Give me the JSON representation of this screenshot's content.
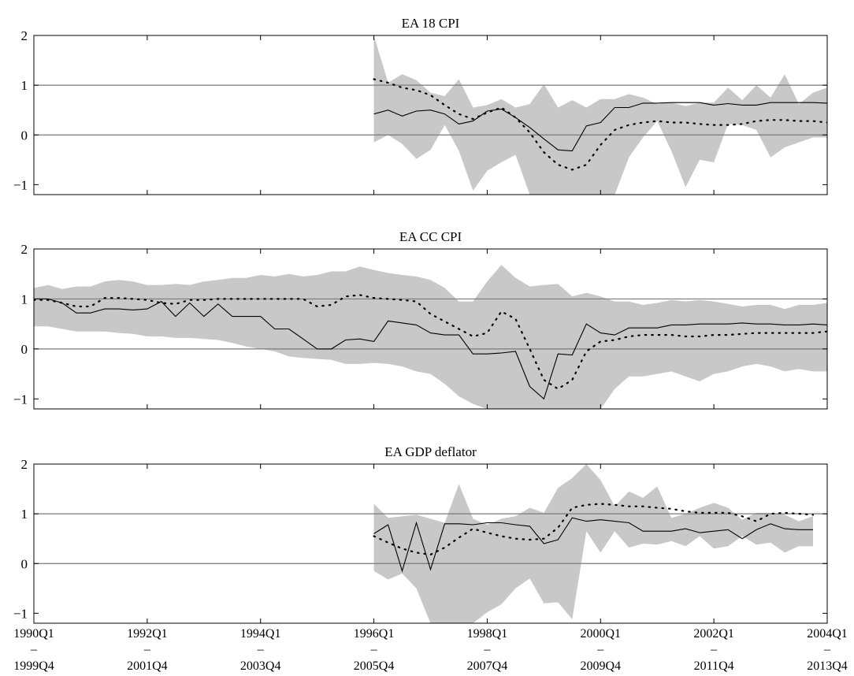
{
  "chart_data": {
    "type": "area",
    "x_ticks": [
      {
        "top": "1990Q1",
        "bottom": "1999Q4"
      },
      {
        "top": "1992Q1",
        "bottom": "2001Q4"
      },
      {
        "top": "1994Q1",
        "bottom": "2003Q4"
      },
      {
        "top": "1996Q1",
        "bottom": "2005Q4"
      },
      {
        "top": "1998Q1",
        "bottom": "2007Q4"
      },
      {
        "top": "2000Q1",
        "bottom": "2009Q4"
      },
      {
        "top": "2002Q1",
        "bottom": "2011Q4"
      },
      {
        "top": "2004Q1",
        "bottom": "2013Q4"
      }
    ],
    "x_tick_separator": "–",
    "xlim": [
      0,
      56
    ],
    "grid": "horizontal reference lines at 0 and 1",
    "panels": [
      {
        "title": "EA 18 CPI",
        "ylim": [
          -1.2,
          2
        ],
        "yticks": [
          2,
          1,
          0,
          -1
        ],
        "band": {
          "x": [
            24,
            25,
            26,
            27,
            28,
            29,
            30,
            31,
            32,
            33,
            34,
            35,
            36,
            37,
            38,
            39,
            40,
            41,
            42,
            43,
            44,
            45,
            46,
            47,
            48,
            49,
            50,
            51,
            52,
            53,
            54,
            55,
            56
          ],
          "upper": [
            2.0,
            1.05,
            1.22,
            1.1,
            0.85,
            0.78,
            1.12,
            0.55,
            0.6,
            0.72,
            0.55,
            0.62,
            1.02,
            0.55,
            0.7,
            0.55,
            0.72,
            0.72,
            0.82,
            0.75,
            0.62,
            0.65,
            0.58,
            0.65,
            0.65,
            0.95,
            0.7,
            1.0,
            0.75,
            1.22,
            0.62,
            0.85,
            0.95
          ],
          "lower": [
            -0.15,
            0.0,
            -0.18,
            -0.48,
            -0.3,
            0.2,
            -0.32,
            -1.12,
            -0.72,
            -0.55,
            -0.4,
            -1.2,
            -1.2,
            -1.2,
            -1.2,
            -1.2,
            -1.2,
            -1.2,
            -0.45,
            -0.05,
            0.28,
            -0.32,
            -1.05,
            -0.5,
            -0.55,
            0.22,
            0.2,
            0.1,
            -0.45,
            -0.25,
            -0.15,
            -0.05,
            -0.05
          ],
          "color": "#c8c8c8"
        },
        "series": [
          {
            "style": "solid",
            "x": [
              24,
              25,
              26,
              27,
              28,
              29,
              30,
              31,
              32,
              33,
              34,
              35,
              36,
              37,
              38,
              39,
              40,
              41,
              42,
              43,
              44,
              45,
              46,
              47,
              48,
              49,
              50,
              51,
              52,
              53,
              54,
              55,
              56
            ],
            "y": [
              0.42,
              0.5,
              0.38,
              0.48,
              0.5,
              0.42,
              0.22,
              0.28,
              0.48,
              0.52,
              0.35,
              0.15,
              -0.08,
              -0.3,
              -0.32,
              0.18,
              0.25,
              0.55,
              0.55,
              0.64,
              0.64,
              0.65,
              0.65,
              0.65,
              0.6,
              0.63,
              0.6,
              0.6,
              0.65,
              0.65,
              0.65,
              0.65,
              0.64
            ]
          },
          {
            "style": "dotted",
            "x": [
              24,
              25,
              26,
              27,
              28,
              29,
              30,
              31,
              32,
              33,
              34,
              35,
              36,
              37,
              38,
              39,
              40,
              41,
              42,
              43,
              44,
              45,
              46,
              47,
              48,
              49,
              50,
              51,
              52,
              53,
              54,
              55,
              56
            ],
            "y": [
              1.12,
              1.05,
              0.95,
              0.9,
              0.8,
              0.6,
              0.42,
              0.32,
              0.45,
              0.55,
              0.35,
              0.05,
              -0.35,
              -0.6,
              -0.7,
              -0.6,
              -0.2,
              0.1,
              0.2,
              0.25,
              0.28,
              0.25,
              0.25,
              0.22,
              0.2,
              0.2,
              0.22,
              0.28,
              0.3,
              0.3,
              0.28,
              0.28,
              0.25
            ]
          }
        ]
      },
      {
        "title": "EA CC CPI",
        "ylim": [
          -1.2,
          2
        ],
        "yticks": [
          2,
          1,
          0,
          -1
        ],
        "band": {
          "x": [
            0,
            1,
            2,
            3,
            4,
            5,
            6,
            7,
            8,
            9,
            10,
            11,
            12,
            13,
            14,
            15,
            16,
            17,
            18,
            19,
            20,
            21,
            22,
            23,
            24,
            25,
            26,
            27,
            28,
            29,
            30,
            31,
            32,
            33,
            34,
            35,
            36,
            37,
            38,
            39,
            40,
            41,
            42,
            43,
            44,
            45,
            46,
            47,
            48,
            49,
            50,
            51,
            52,
            53,
            54,
            55,
            56
          ],
          "upper": [
            1.22,
            1.28,
            1.2,
            1.25,
            1.25,
            1.35,
            1.38,
            1.35,
            1.28,
            1.28,
            1.3,
            1.28,
            1.35,
            1.38,
            1.42,
            1.42,
            1.48,
            1.45,
            1.5,
            1.45,
            1.48,
            1.55,
            1.55,
            1.65,
            1.58,
            1.52,
            1.48,
            1.45,
            1.38,
            1.22,
            0.95,
            0.95,
            1.35,
            1.68,
            1.42,
            1.25,
            1.28,
            1.3,
            1.05,
            1.12,
            1.05,
            0.95,
            0.95,
            0.88,
            0.92,
            0.98,
            0.95,
            0.98,
            0.95,
            0.9,
            0.85,
            0.88,
            0.88,
            0.8,
            0.88,
            0.88,
            0.92
          ],
          "lower": [
            0.45,
            0.45,
            0.4,
            0.35,
            0.35,
            0.35,
            0.32,
            0.3,
            0.25,
            0.25,
            0.22,
            0.22,
            0.2,
            0.18,
            0.12,
            0.05,
            0.0,
            -0.05,
            -0.15,
            -0.18,
            -0.2,
            -0.22,
            -0.3,
            -0.3,
            -0.28,
            -0.3,
            -0.35,
            -0.45,
            -0.5,
            -0.7,
            -0.95,
            -1.1,
            -1.2,
            -1.2,
            -1.2,
            -1.2,
            -1.2,
            -1.2,
            -1.2,
            -1.2,
            -1.2,
            -0.8,
            -0.55,
            -0.55,
            -0.5,
            -0.45,
            -0.55,
            -0.65,
            -0.5,
            -0.45,
            -0.35,
            -0.3,
            -0.35,
            -0.45,
            -0.4,
            -0.45,
            -0.45
          ],
          "color": "#c8c8c8"
        },
        "series": [
          {
            "style": "solid",
            "x": [
              0,
              1,
              2,
              3,
              4,
              5,
              6,
              7,
              8,
              9,
              10,
              11,
              12,
              13,
              14,
              15,
              16,
              17,
              18,
              19,
              20,
              21,
              22,
              23,
              24,
              25,
              26,
              27,
              28,
              29,
              30,
              31,
              32,
              33,
              34,
              35,
              36,
              37,
              38,
              39,
              40,
              41,
              42,
              43,
              44,
              45,
              46,
              47,
              48,
              49,
              50,
              51,
              52,
              53,
              54,
              55,
              56
            ],
            "y": [
              1.0,
              1.0,
              0.92,
              0.72,
              0.72,
              0.8,
              0.8,
              0.78,
              0.8,
              0.95,
              0.65,
              0.92,
              0.65,
              0.9,
              0.65,
              0.65,
              0.65,
              0.4,
              0.4,
              0.2,
              0.0,
              0.0,
              0.18,
              0.2,
              0.15,
              0.56,
              0.52,
              0.48,
              0.32,
              0.28,
              0.28,
              -0.1,
              -0.1,
              -0.08,
              -0.05,
              -0.75,
              -1.0,
              -0.1,
              -0.12,
              0.5,
              0.32,
              0.28,
              0.42,
              0.42,
              0.42,
              0.48,
              0.48,
              0.5,
              0.5,
              0.5,
              0.52,
              0.5,
              0.5,
              0.48,
              0.48,
              0.5,
              0.48
            ]
          },
          {
            "style": "dotted",
            "x": [
              0,
              1,
              2,
              3,
              4,
              5,
              6,
              7,
              8,
              9,
              10,
              11,
              12,
              13,
              14,
              15,
              16,
              17,
              18,
              19,
              20,
              21,
              22,
              23,
              24,
              25,
              26,
              27,
              28,
              29,
              30,
              31,
              32,
              33,
              34,
              35,
              36,
              37,
              38,
              39,
              40,
              41,
              42,
              43,
              44,
              45,
              46,
              47,
              48,
              49,
              50,
              51,
              52,
              53,
              54,
              55,
              56
            ],
            "y": [
              0.98,
              0.98,
              0.92,
              0.85,
              0.85,
              1.02,
              1.02,
              1.0,
              0.98,
              0.92,
              0.9,
              0.98,
              0.98,
              1.0,
              1.0,
              1.0,
              1.0,
              1.0,
              1.0,
              1.0,
              0.85,
              0.88,
              1.05,
              1.08,
              1.02,
              1.0,
              0.98,
              0.95,
              0.7,
              0.55,
              0.4,
              0.25,
              0.32,
              0.75,
              0.6,
              0.0,
              -0.62,
              -0.8,
              -0.62,
              -0.05,
              0.15,
              0.18,
              0.25,
              0.28,
              0.28,
              0.28,
              0.25,
              0.25,
              0.28,
              0.28,
              0.3,
              0.32,
              0.32,
              0.32,
              0.32,
              0.32,
              0.35
            ]
          }
        ]
      },
      {
        "title": "EA GDP deflator",
        "ylim": [
          -1.2,
          2
        ],
        "yticks": [
          2,
          1,
          0,
          -1
        ],
        "band": {
          "x": [
            24,
            25,
            26,
            27,
            28,
            29,
            30,
            31,
            32,
            33,
            34,
            35,
            36,
            37,
            38,
            39,
            40,
            41,
            42,
            43,
            44,
            45,
            46,
            47,
            48,
            49,
            50,
            51,
            52,
            53,
            54,
            55
          ],
          "upper": [
            1.2,
            0.92,
            0.95,
            0.98,
            0.9,
            0.82,
            1.6,
            0.9,
            0.78,
            0.9,
            0.95,
            1.12,
            1.02,
            1.52,
            1.72,
            2.0,
            1.68,
            1.15,
            1.45,
            1.32,
            1.55,
            0.92,
            1.0,
            1.12,
            1.22,
            1.12,
            0.88,
            1.02,
            1.02,
            0.98,
            0.85,
            0.95
          ],
          "lower": [
            -0.15,
            -0.32,
            -0.2,
            -0.5,
            -1.2,
            -1.2,
            -1.2,
            -1.2,
            -0.98,
            -0.82,
            -0.5,
            -0.3,
            -0.8,
            -0.78,
            -1.12,
            0.65,
            0.22,
            0.65,
            0.32,
            0.4,
            0.38,
            0.45,
            0.35,
            0.55,
            0.3,
            0.35,
            0.55,
            0.38,
            0.42,
            0.22,
            0.35,
            0.35
          ],
          "color": "#c8c8c8"
        },
        "series": [
          {
            "style": "solid",
            "x": [
              24,
              25,
              26,
              27,
              28,
              29,
              30,
              31,
              32,
              33,
              34,
              35,
              36,
              37,
              38,
              39,
              40,
              41,
              42,
              43,
              44,
              45,
              46,
              47,
              48,
              49,
              50,
              51,
              52,
              53,
              54,
              55
            ],
            "y": [
              0.6,
              0.78,
              -0.15,
              0.82,
              -0.12,
              0.8,
              0.8,
              0.78,
              0.82,
              0.82,
              0.78,
              0.75,
              0.4,
              0.48,
              0.92,
              0.85,
              0.88,
              0.85,
              0.82,
              0.65,
              0.65,
              0.65,
              0.7,
              0.62,
              0.65,
              0.68,
              0.5,
              0.68,
              0.8,
              0.7,
              0.68,
              0.68
            ]
          },
          {
            "style": "dotted",
            "x": [
              24,
              25,
              26,
              27,
              28,
              29,
              30,
              31,
              32,
              33,
              34,
              35,
              36,
              37,
              38,
              39,
              40,
              41,
              42,
              43,
              44,
              45,
              46,
              47,
              48,
              49,
              50,
              51,
              52,
              53,
              54,
              55
            ],
            "y": [
              0.55,
              0.42,
              0.3,
              0.22,
              0.18,
              0.32,
              0.52,
              0.7,
              0.62,
              0.55,
              0.5,
              0.48,
              0.5,
              0.72,
              1.12,
              1.18,
              1.2,
              1.18,
              1.15,
              1.15,
              1.12,
              1.1,
              1.05,
              1.02,
              1.02,
              1.02,
              0.95,
              0.85,
              1.0,
              1.02,
              1.0,
              0.98
            ]
          }
        ]
      }
    ]
  }
}
